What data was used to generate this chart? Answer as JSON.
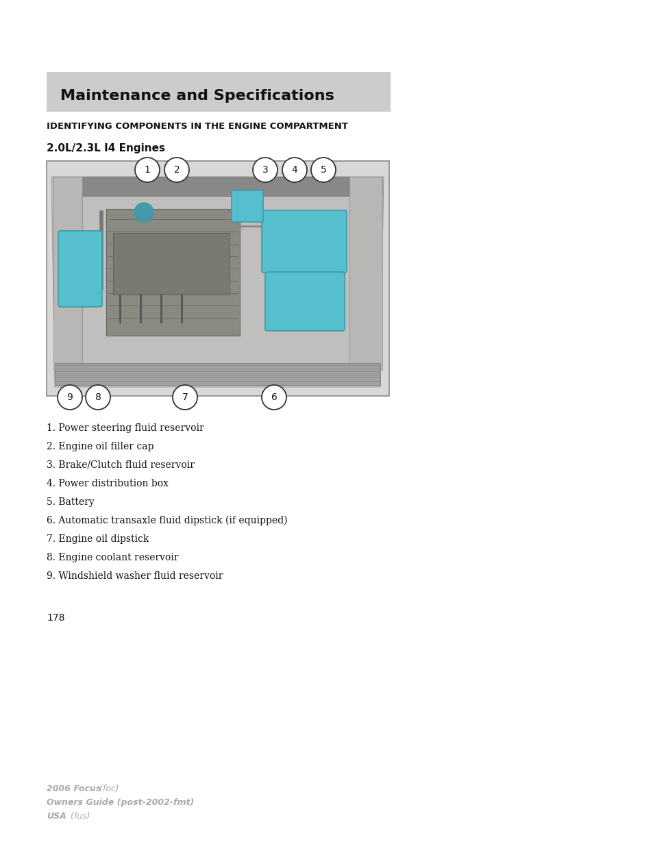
{
  "page_background": "#ffffff",
  "header_bg": "#cccccc",
  "header_text": "Maintenance and Specifications",
  "header_text_color": "#111111",
  "section_title": "IDENTIFYING COMPONENTS IN THE ENGINE COMPARTMENT",
  "subsection_title": "2.0L/2.3L I4 Engines",
  "list_items": [
    "1. Power steering fluid reservoir",
    "2. Engine oil filler cap",
    "3. Brake/Clutch fluid reservoir",
    "4. Power distribution box",
    "5. Battery",
    "6. Automatic transaxle fluid dipstick (if equipped)",
    "7. Engine oil dipstick",
    "8. Engine coolant reservoir",
    "9. Windshield washer fluid reservoir"
  ],
  "page_number": "178",
  "footer_line1_bold": "2006 Focus",
  "footer_line1_italic": " (foc)",
  "footer_line2": "Owners Guide (post-2002-fmt)",
  "footer_line3_bold": "USA",
  "footer_line3_italic": " (fus)",
  "footer_color": "#aaaaaa",
  "engine_highlight_color": "#55bfce",
  "teal_dark": "#3a9aaa"
}
